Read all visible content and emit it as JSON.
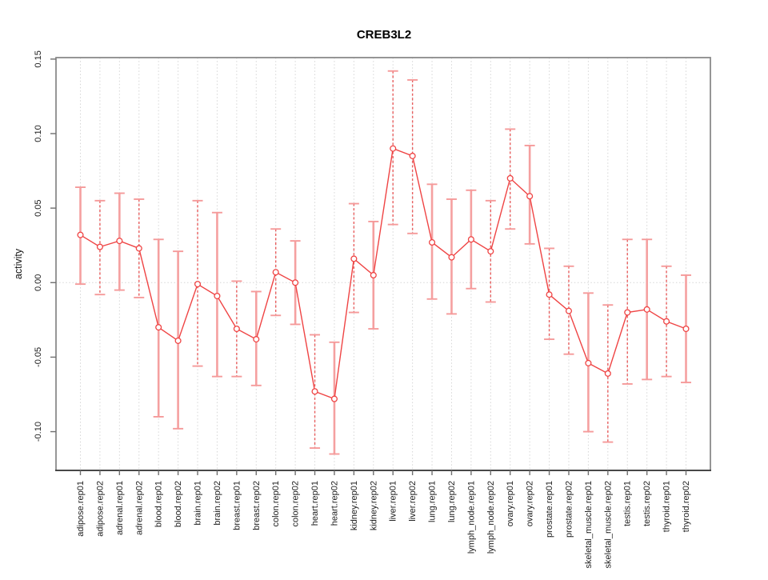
{
  "figure": {
    "background": "#ffffff"
  },
  "chart_data": {
    "type": "line",
    "title": "CREB3L2",
    "xlabel": "",
    "ylabel": "activity",
    "legend": "none",
    "marker": "open-circle",
    "grid": {
      "vertical_dotted_per_category": true,
      "horizontal_dotted_zero_line": true
    },
    "ylim": [
      -0.126,
      0.151
    ],
    "y_ticks": {
      "values": [
        -0.1,
        -0.05,
        0.0,
        0.05,
        0.1,
        0.15
      ],
      "labels": [
        "-0.10",
        "-0.05",
        "0.00",
        "0.05",
        "0.10",
        "0.15"
      ]
    },
    "categories": [
      "adipose.rep01",
      "adipose.rep02",
      "adrenal.rep01",
      "adrenal.rep02",
      "blood.rep01",
      "blood.rep02",
      "brain.rep01",
      "brain.rep02",
      "breast.rep01",
      "breast.rep02",
      "colon.rep01",
      "colon.rep02",
      "heart.rep01",
      "heart.rep02",
      "kidney.rep01",
      "kidney.rep02",
      "liver.rep01",
      "liver.rep02",
      "lung.rep01",
      "lung.rep02",
      "lymph_node.rep01",
      "lymph_node.rep02",
      "ovary.rep01",
      "ovary.rep02",
      "prostate.rep01",
      "prostate.rep02",
      "skeletal_muscle.rep01",
      "skeletal_muscle.rep02",
      "testis.rep01",
      "testis.rep02",
      "thyroid.rep01",
      "thyroid.rep02"
    ],
    "series": [
      {
        "name": "activity",
        "values": [
          0.032,
          0.024,
          0.028,
          0.023,
          -0.03,
          -0.039,
          -0.001,
          -0.009,
          -0.031,
          -0.038,
          0.007,
          0.0,
          -0.073,
          -0.078,
          0.016,
          0.005,
          0.09,
          0.085,
          0.027,
          0.017,
          0.029,
          0.021,
          0.07,
          0.058,
          -0.008,
          -0.019,
          -0.054,
          -0.061,
          -0.02,
          -0.018,
          -0.026,
          -0.031
        ],
        "error_low": [
          -0.001,
          -0.008,
          -0.005,
          -0.01,
          -0.09,
          -0.098,
          -0.056,
          -0.063,
          -0.063,
          -0.069,
          -0.022,
          -0.028,
          -0.111,
          -0.115,
          -0.02,
          -0.031,
          0.039,
          0.033,
          -0.011,
          -0.021,
          -0.004,
          -0.013,
          0.036,
          0.026,
          -0.038,
          -0.048,
          -0.1,
          -0.107,
          -0.068,
          -0.065,
          -0.063,
          -0.067
        ],
        "error_high": [
          0.064,
          0.055,
          0.06,
          0.056,
          0.029,
          0.021,
          0.055,
          0.047,
          0.001,
          -0.006,
          0.036,
          0.028,
          -0.035,
          -0.04,
          0.053,
          0.041,
          0.142,
          0.136,
          0.066,
          0.056,
          0.062,
          0.055,
          0.103,
          0.092,
          0.023,
          0.011,
          -0.007,
          -0.015,
          0.029,
          0.029,
          0.011,
          0.005
        ],
        "error_bar_styles": [
          "solid",
          "dashed",
          "solid",
          "dashed",
          "solid",
          "solid",
          "dashed",
          "solid",
          "dashed",
          "solid",
          "dashed",
          "solid",
          "dashed",
          "solid",
          "dashed",
          "solid",
          "dashed",
          "dashed",
          "solid",
          "solid",
          "solid",
          "dashed",
          "dashed",
          "solid",
          "dashed",
          "dashed",
          "solid",
          "dashed",
          "dashed",
          "solid",
          "dashed",
          "solid"
        ]
      }
    ],
    "colors": {
      "line": "#ef4444",
      "marker": "#ef4444",
      "marker_fill": "#ffffff",
      "error_bar_solid": "#f5a0a0",
      "error_bar_dashed": "#e85f5f",
      "error_cap": "#f59a9a",
      "grid": "#d6d6d6",
      "box": "#8a8a8a",
      "axis": "#2b2b2b",
      "tick": "#6f6f6f"
    }
  }
}
